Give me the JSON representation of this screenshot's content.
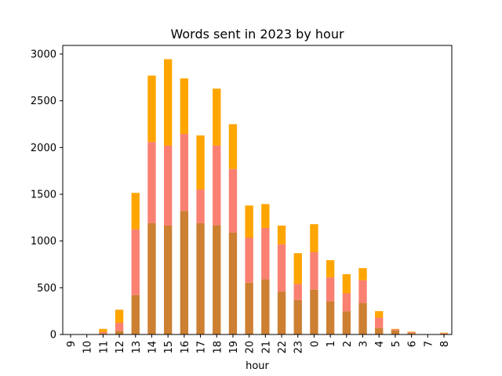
{
  "chart_data": {
    "type": "bar",
    "stacked": true,
    "title": "Words sent in 2023 by hour",
    "xlabel": "hour",
    "ylabel": "",
    "ylim": [
      0,
      3000
    ],
    "yticks": [
      0,
      500,
      1000,
      1500,
      2000,
      2500,
      3000
    ],
    "categories": [
      "9",
      "10",
      "11",
      "12",
      "13",
      "14",
      "15",
      "16",
      "17",
      "18",
      "19",
      "20",
      "21",
      "22",
      "23",
      "0",
      "1",
      "2",
      "3",
      "4",
      "5",
      "6",
      "7",
      "8"
    ],
    "series": [
      {
        "color": "#cd7f32",
        "values": [
          0,
          0,
          10,
          40,
          420,
          1190,
          1165,
          1320,
          1190,
          1170,
          1090,
          555,
          590,
          460,
          370,
          480,
          355,
          250,
          335,
          70,
          45,
          15,
          0,
          10
        ]
      },
      {
        "color": "#fa8072",
        "values": [
          0,
          0,
          15,
          85,
          705,
          870,
          855,
          825,
          360,
          850,
          680,
          480,
          550,
          505,
          170,
          400,
          255,
          190,
          245,
          110,
          10,
          10,
          0,
          5
        ]
      },
      {
        "color": "#ffa500",
        "values": [
          0,
          0,
          35,
          140,
          390,
          710,
          925,
          595,
          580,
          610,
          480,
          345,
          255,
          200,
          330,
          300,
          185,
          205,
          130,
          70,
          5,
          5,
          0,
          5
        ]
      }
    ],
    "grid": false,
    "legend": "none"
  }
}
